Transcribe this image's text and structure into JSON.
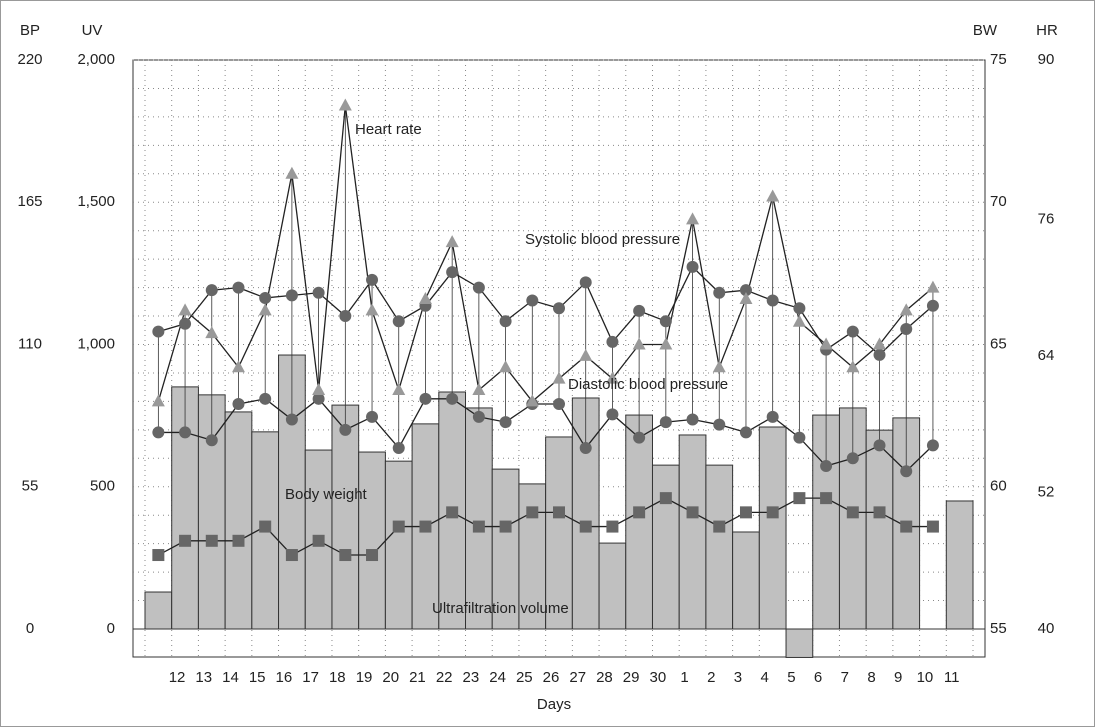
{
  "chart_data": {
    "type": "combo",
    "xlabel": "Days",
    "categories": [
      null,
      "12",
      "13",
      "14",
      "15",
      "16",
      "17",
      "18",
      "19",
      "20",
      "21",
      "22",
      "23",
      "24",
      "25",
      "26",
      "27",
      "28",
      "29",
      "30",
      "1",
      "2",
      "3",
      "4",
      "5",
      "6",
      "7",
      "8",
      "9",
      "10",
      "11"
    ],
    "ylabel": "BP",
    "ylim": [
      0,
      220
    ],
    "yticks": [
      0,
      55,
      110,
      165,
      220
    ],
    "y2label": "UV",
    "y2lim": [
      0,
      2000
    ],
    "y2ticks": [
      0,
      500,
      {
        "value": 1000,
        "label": "1,000"
      },
      {
        "value": 1500,
        "label": "1,500"
      },
      {
        "value": 2000,
        "label": "2,000"
      }
    ],
    "y3label": "BW",
    "y3lim": [
      55,
      75
    ],
    "y3ticks": [
      55,
      60,
      65,
      70,
      75
    ],
    "y4label": "HR",
    "y4lim": [
      40,
      90
    ],
    "y4ticks": [
      40,
      52,
      64,
      76,
      90
    ],
    "grid": true,
    "series": [
      {
        "name": "Ultrafiltration volume",
        "type": "bar",
        "axis": "y2",
        "color": "#c0c0c0",
        "values": [
          130,
          851,
          823,
          763,
          693,
          963,
          629,
          787,
          622,
          590,
          721,
          833,
          777,
          562,
          510,
          675,
          812,
          302,
          752,
          576,
          682,
          576,
          341,
          710,
          -100,
          752,
          777,
          699,
          742,
          null,
          450
        ]
      },
      {
        "name": "Systolic blood pressure",
        "type": "line",
        "marker": "circle",
        "axis": "y",
        "color": "#666666",
        "values": [
          115,
          118,
          131,
          132,
          128,
          129,
          130,
          121,
          135,
          119,
          125,
          138,
          132,
          119,
          127,
          124,
          134,
          111,
          123,
          119,
          140,
          130,
          131,
          127,
          124,
          108,
          115,
          106,
          116,
          125,
          null
        ]
      },
      {
        "name": "Diastolic blood pressure",
        "type": "line",
        "marker": "circle",
        "axis": "y",
        "color": "#666666",
        "values": [
          76,
          76,
          73,
          87,
          89,
          81,
          89,
          77,
          82,
          70,
          89,
          89,
          82,
          80,
          87,
          87,
          70,
          83,
          74,
          80,
          81,
          79,
          76,
          82,
          74,
          63,
          66,
          71,
          61,
          71,
          null
        ]
      },
      {
        "name": "Heart rate",
        "type": "line",
        "marker": "triangle",
        "axis": "y4",
        "color": "#999999",
        "values": [
          60,
          68,
          66,
          63,
          68,
          80,
          61,
          86,
          68,
          61,
          69,
          74,
          61,
          63,
          60,
          62,
          64,
          62,
          65,
          65,
          76,
          63,
          69,
          78,
          67,
          65,
          63,
          65,
          68,
          70,
          null
        ]
      },
      {
        "name": "Body weight",
        "type": "line",
        "marker": "square",
        "axis": "y3",
        "color": "#666666",
        "values": [
          57.6,
          58.1,
          58.1,
          58.1,
          58.6,
          57.6,
          58.1,
          57.6,
          57.6,
          58.6,
          58.6,
          59.1,
          58.6,
          58.6,
          59.1,
          59.1,
          58.6,
          58.6,
          59.1,
          59.6,
          59.1,
          58.6,
          59.1,
          59.1,
          59.6,
          59.6,
          59.1,
          59.1,
          58.6,
          58.6,
          null
        ]
      }
    ]
  }
}
